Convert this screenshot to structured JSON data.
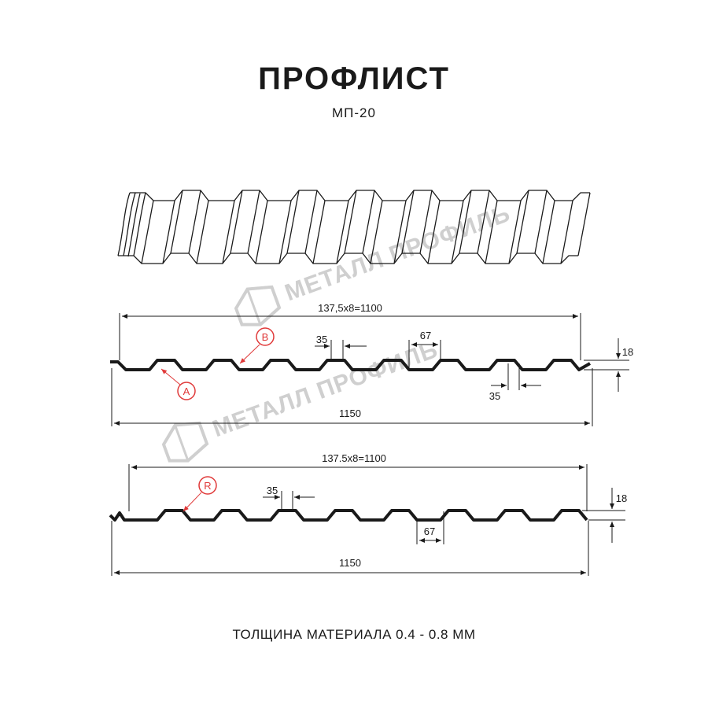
{
  "header": {
    "title": "ПРОФЛИСТ",
    "subtitle": "МП-20"
  },
  "footer": {
    "thickness": "ТОЛЩИНА МАТЕРИАЛА 0.4 - 0.8 ММ"
  },
  "watermark": {
    "text": "МЕТАЛЛ ПРОФИЛЬ"
  },
  "colors": {
    "marker": "#e03a3a",
    "profile": "#1a1a1a",
    "watermark": "#cfcfcf"
  },
  "profile_a": {
    "width_pitch": "137,5x8=1100",
    "total_width": "1150",
    "top_width": "67",
    "bottom_width_top": "35",
    "bottom_width_bottom": "35",
    "height": "18",
    "marker_b": "B",
    "marker_a": "A"
  },
  "profile_b": {
    "width_pitch": "137.5x8=1100",
    "total_width": "1150",
    "top_width": "67",
    "bottom_width": "35",
    "height": "18",
    "marker_r": "R"
  }
}
